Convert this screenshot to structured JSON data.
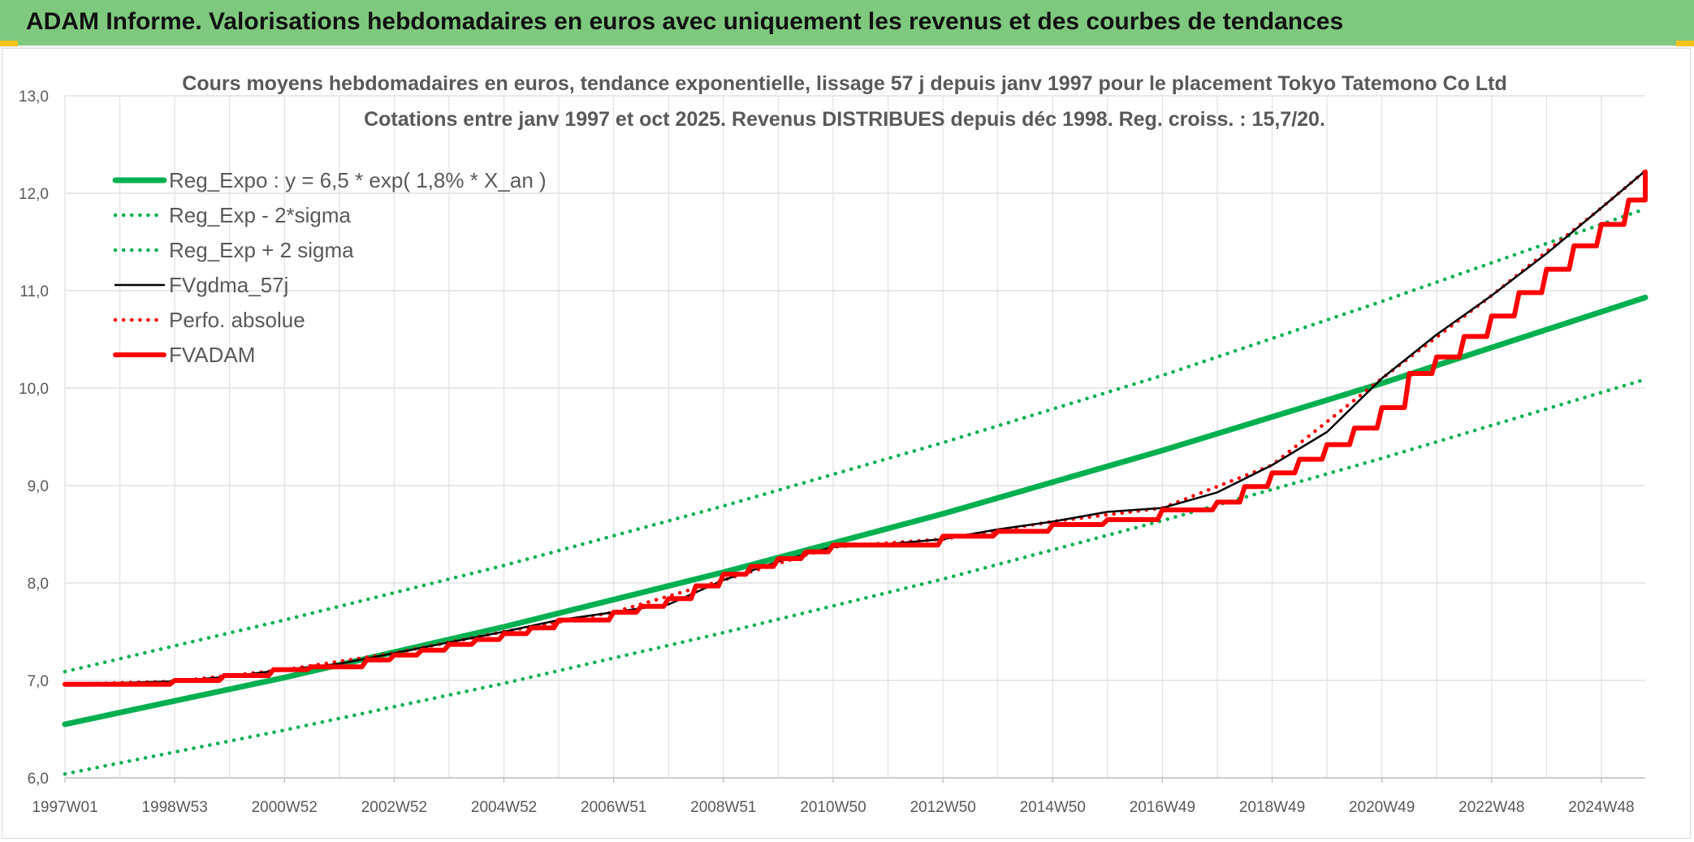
{
  "header": {
    "title": "ADAM Informe. Valorisations hebdomadaires en euros avec uniquement les revenus et des courbes de tendances"
  },
  "colors": {
    "header_bg": "#7fc97f",
    "reg_green": "#00b050",
    "fvgdma_black": "#000000",
    "fvadam_red": "#ff0000",
    "perfo_red": "#ff0000",
    "grid": "#d9d9d9",
    "axis_text": "#595959"
  },
  "chart_data": {
    "type": "line",
    "title_line1": "Cours moyens hebdomadaires en euros, tendance exponentielle, lissage 57 j depuis janv 1997 pour le placement Tokyo Tatemono Co Ltd",
    "title_line2": "Cotations entre janv 1997 et oct 2025. Revenus DISTRIBUES depuis déc 1998. Reg. croiss. : 15,7/20.",
    "ylim": [
      6.0,
      13.0
    ],
    "yticks": [
      "6,0",
      "7,0",
      "8,0",
      "9,0",
      "10,0",
      "11,0",
      "12,0",
      "13,0"
    ],
    "x_range": [
      1997.0,
      2025.8
    ],
    "xticks": [
      {
        "label": "1997W01",
        "x": 1997.0
      },
      {
        "label": "1998W53",
        "x": 1999.0
      },
      {
        "label": "2000W52",
        "x": 2001.0
      },
      {
        "label": "2002W52",
        "x": 2003.0
      },
      {
        "label": "2004W52",
        "x": 2005.0
      },
      {
        "label": "2006W51",
        "x": 2007.0
      },
      {
        "label": "2008W51",
        "x": 2009.0
      },
      {
        "label": "2010W50",
        "x": 2011.0
      },
      {
        "label": "2012W50",
        "x": 2013.0
      },
      {
        "label": "2014W50",
        "x": 2015.0
      },
      {
        "label": "2016W49",
        "x": 2017.0
      },
      {
        "label": "2018W49",
        "x": 2019.0
      },
      {
        "label": "2020W49",
        "x": 2021.0
      },
      {
        "label": "2022W48",
        "x": 2023.0
      },
      {
        "label": "2024W48",
        "x": 2025.0
      }
    ],
    "legend_position": "top-left",
    "series": [
      {
        "name": "Reg_Expo : y = 6,5 * exp( 1,8% *  X_an )",
        "style": "solid-thick",
        "color": "#00b050",
        "x": [
          1997.0,
          2001.0,
          2005.0,
          2009.0,
          2013.0,
          2017.0,
          2021.0,
          2025.8
        ],
        "y": [
          6.55,
          7.03,
          7.55,
          8.11,
          8.71,
          9.36,
          10.05,
          10.93
        ]
      },
      {
        "name": "Reg_Exp - 2*sigma",
        "style": "dotted",
        "color": "#00b050",
        "x": [
          1997.0,
          2001.0,
          2005.0,
          2009.0,
          2013.0,
          2017.0,
          2021.0,
          2025.8
        ],
        "y": [
          6.04,
          6.49,
          6.97,
          7.49,
          8.04,
          8.64,
          9.28,
          10.09
        ]
      },
      {
        "name": "Reg_Exp + 2 sigma",
        "style": "dotted",
        "color": "#00b050",
        "x": [
          1997.0,
          2001.0,
          2005.0,
          2009.0,
          2013.0,
          2017.0,
          2021.0,
          2025.8
        ],
        "y": [
          7.09,
          7.62,
          8.18,
          8.79,
          9.44,
          10.13,
          10.89,
          11.84
        ]
      },
      {
        "name": "FVgdma_57j",
        "style": "solid",
        "color": "#000000",
        "x": [
          1997.0,
          1999.0,
          2000.0,
          2001.0,
          2002.0,
          2003.0,
          2004.0,
          2005.0,
          2006.0,
          2007.0,
          2008.0,
          2009.0,
          2010.0,
          2011.0,
          2012.0,
          2013.0,
          2014.0,
          2015.0,
          2016.0,
          2017.0,
          2018.0,
          2019.0,
          2020.0,
          2021.0,
          2022.0,
          2023.0,
          2024.0,
          2025.0,
          2025.8
        ],
        "y": [
          6.96,
          6.99,
          7.04,
          7.11,
          7.17,
          7.28,
          7.39,
          7.5,
          7.62,
          7.7,
          7.78,
          8.03,
          8.22,
          8.37,
          8.4,
          8.45,
          8.55,
          8.63,
          8.73,
          8.77,
          8.93,
          9.21,
          9.55,
          10.1,
          10.55,
          10.95,
          11.38,
          11.85,
          12.23
        ]
      },
      {
        "name": "Perfo. absolue",
        "style": "dotted",
        "color": "#ff0000",
        "x": [
          1997.0,
          1999.0,
          2001.0,
          2003.0,
          2005.0,
          2007.0,
          2009.0,
          2011.0,
          2013.0,
          2015.0,
          2017.0,
          2019.0,
          2021.0,
          2023.0,
          2025.0,
          2025.8
        ],
        "y": [
          6.96,
          6.99,
          7.11,
          7.28,
          7.5,
          7.7,
          8.03,
          8.37,
          8.45,
          8.63,
          8.77,
          9.21,
          10.1,
          10.95,
          11.85,
          12.23
        ]
      },
      {
        "name": "FVADAM",
        "style": "step-thick",
        "color": "#ff0000",
        "x": [
          1997.0,
          1999.0,
          1999.9,
          2000.8,
          2001.5,
          2002.5,
          2003.0,
          2003.5,
          2004.0,
          2004.5,
          2005.0,
          2005.5,
          2006.0,
          2007.0,
          2007.5,
          2008.0,
          2008.5,
          2009.0,
          2009.5,
          2010.0,
          2010.5,
          2011.0,
          2013.0,
          2014.0,
          2015.0,
          2016.0,
          2017.0,
          2018.0,
          2018.5,
          2019.0,
          2019.5,
          2020.0,
          2020.5,
          2021.0,
          2021.5,
          2022.0,
          2022.5,
          2023.0,
          2023.5,
          2024.0,
          2024.5,
          2025.0,
          2025.5
        ],
        "y": [
          6.96,
          7.0,
          7.05,
          7.11,
          7.14,
          7.21,
          7.26,
          7.31,
          7.37,
          7.42,
          7.48,
          7.54,
          7.62,
          7.7,
          7.76,
          7.84,
          7.97,
          8.09,
          8.17,
          8.25,
          8.32,
          8.39,
          8.48,
          8.53,
          8.6,
          8.65,
          8.75,
          8.83,
          8.99,
          9.13,
          9.27,
          9.42,
          9.59,
          9.8,
          10.15,
          10.32,
          10.53,
          10.74,
          10.98,
          11.22,
          11.46,
          11.68,
          11.93
        ]
      }
    ],
    "fvadam_last": 12.22
  }
}
